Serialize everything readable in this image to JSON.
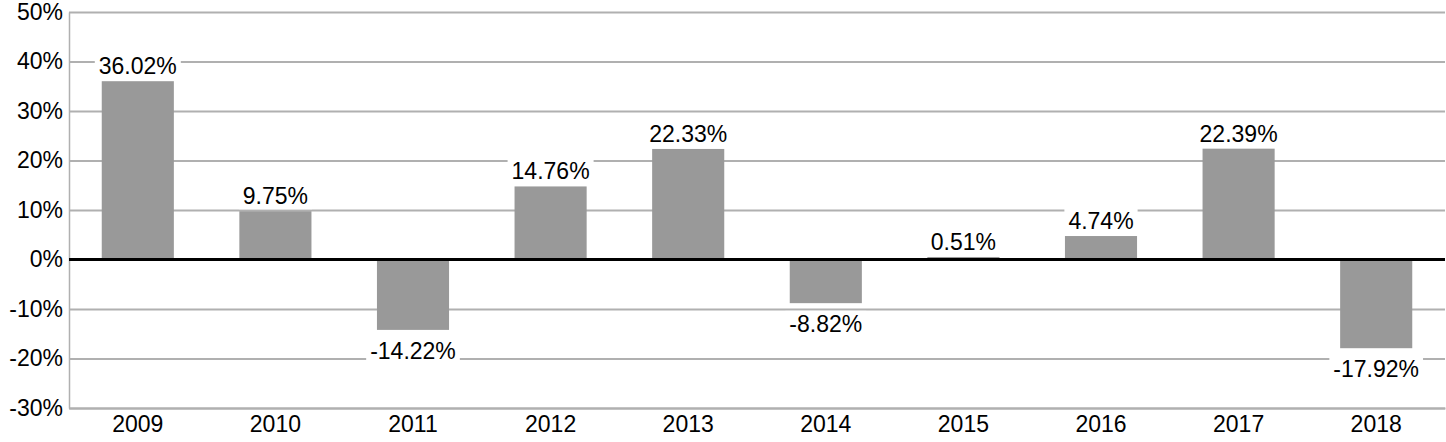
{
  "chart_data": {
    "type": "bar",
    "categories": [
      "2009",
      "2010",
      "2011",
      "2012",
      "2013",
      "2014",
      "2015",
      "2016",
      "2017",
      "2018"
    ],
    "values": [
      36.02,
      9.75,
      -14.22,
      14.76,
      22.33,
      -8.82,
      0.51,
      4.74,
      22.39,
      -17.92
    ],
    "value_labels": [
      "36.02%",
      "9.75%",
      "-14.22%",
      "14.76%",
      "22.33%",
      "-8.82%",
      "0.51%",
      "4.74%",
      "22.39%",
      "-17.92%"
    ],
    "color": "#999999",
    "ylim": [
      -30,
      50
    ],
    "yticks": [
      {
        "value": -30,
        "label": "-30%"
      },
      {
        "value": -20,
        "label": "-20%"
      },
      {
        "value": -10,
        "label": "-10%"
      },
      {
        "value": 0,
        "label": "0%"
      },
      {
        "value": 10,
        "label": "10%"
      },
      {
        "value": 20,
        "label": "20%"
      },
      {
        "value": 30,
        "label": "30%"
      },
      {
        "value": 40,
        "label": "40%"
      },
      {
        "value": 50,
        "label": "50%"
      }
    ],
    "grid": true,
    "data_labels": true
  }
}
